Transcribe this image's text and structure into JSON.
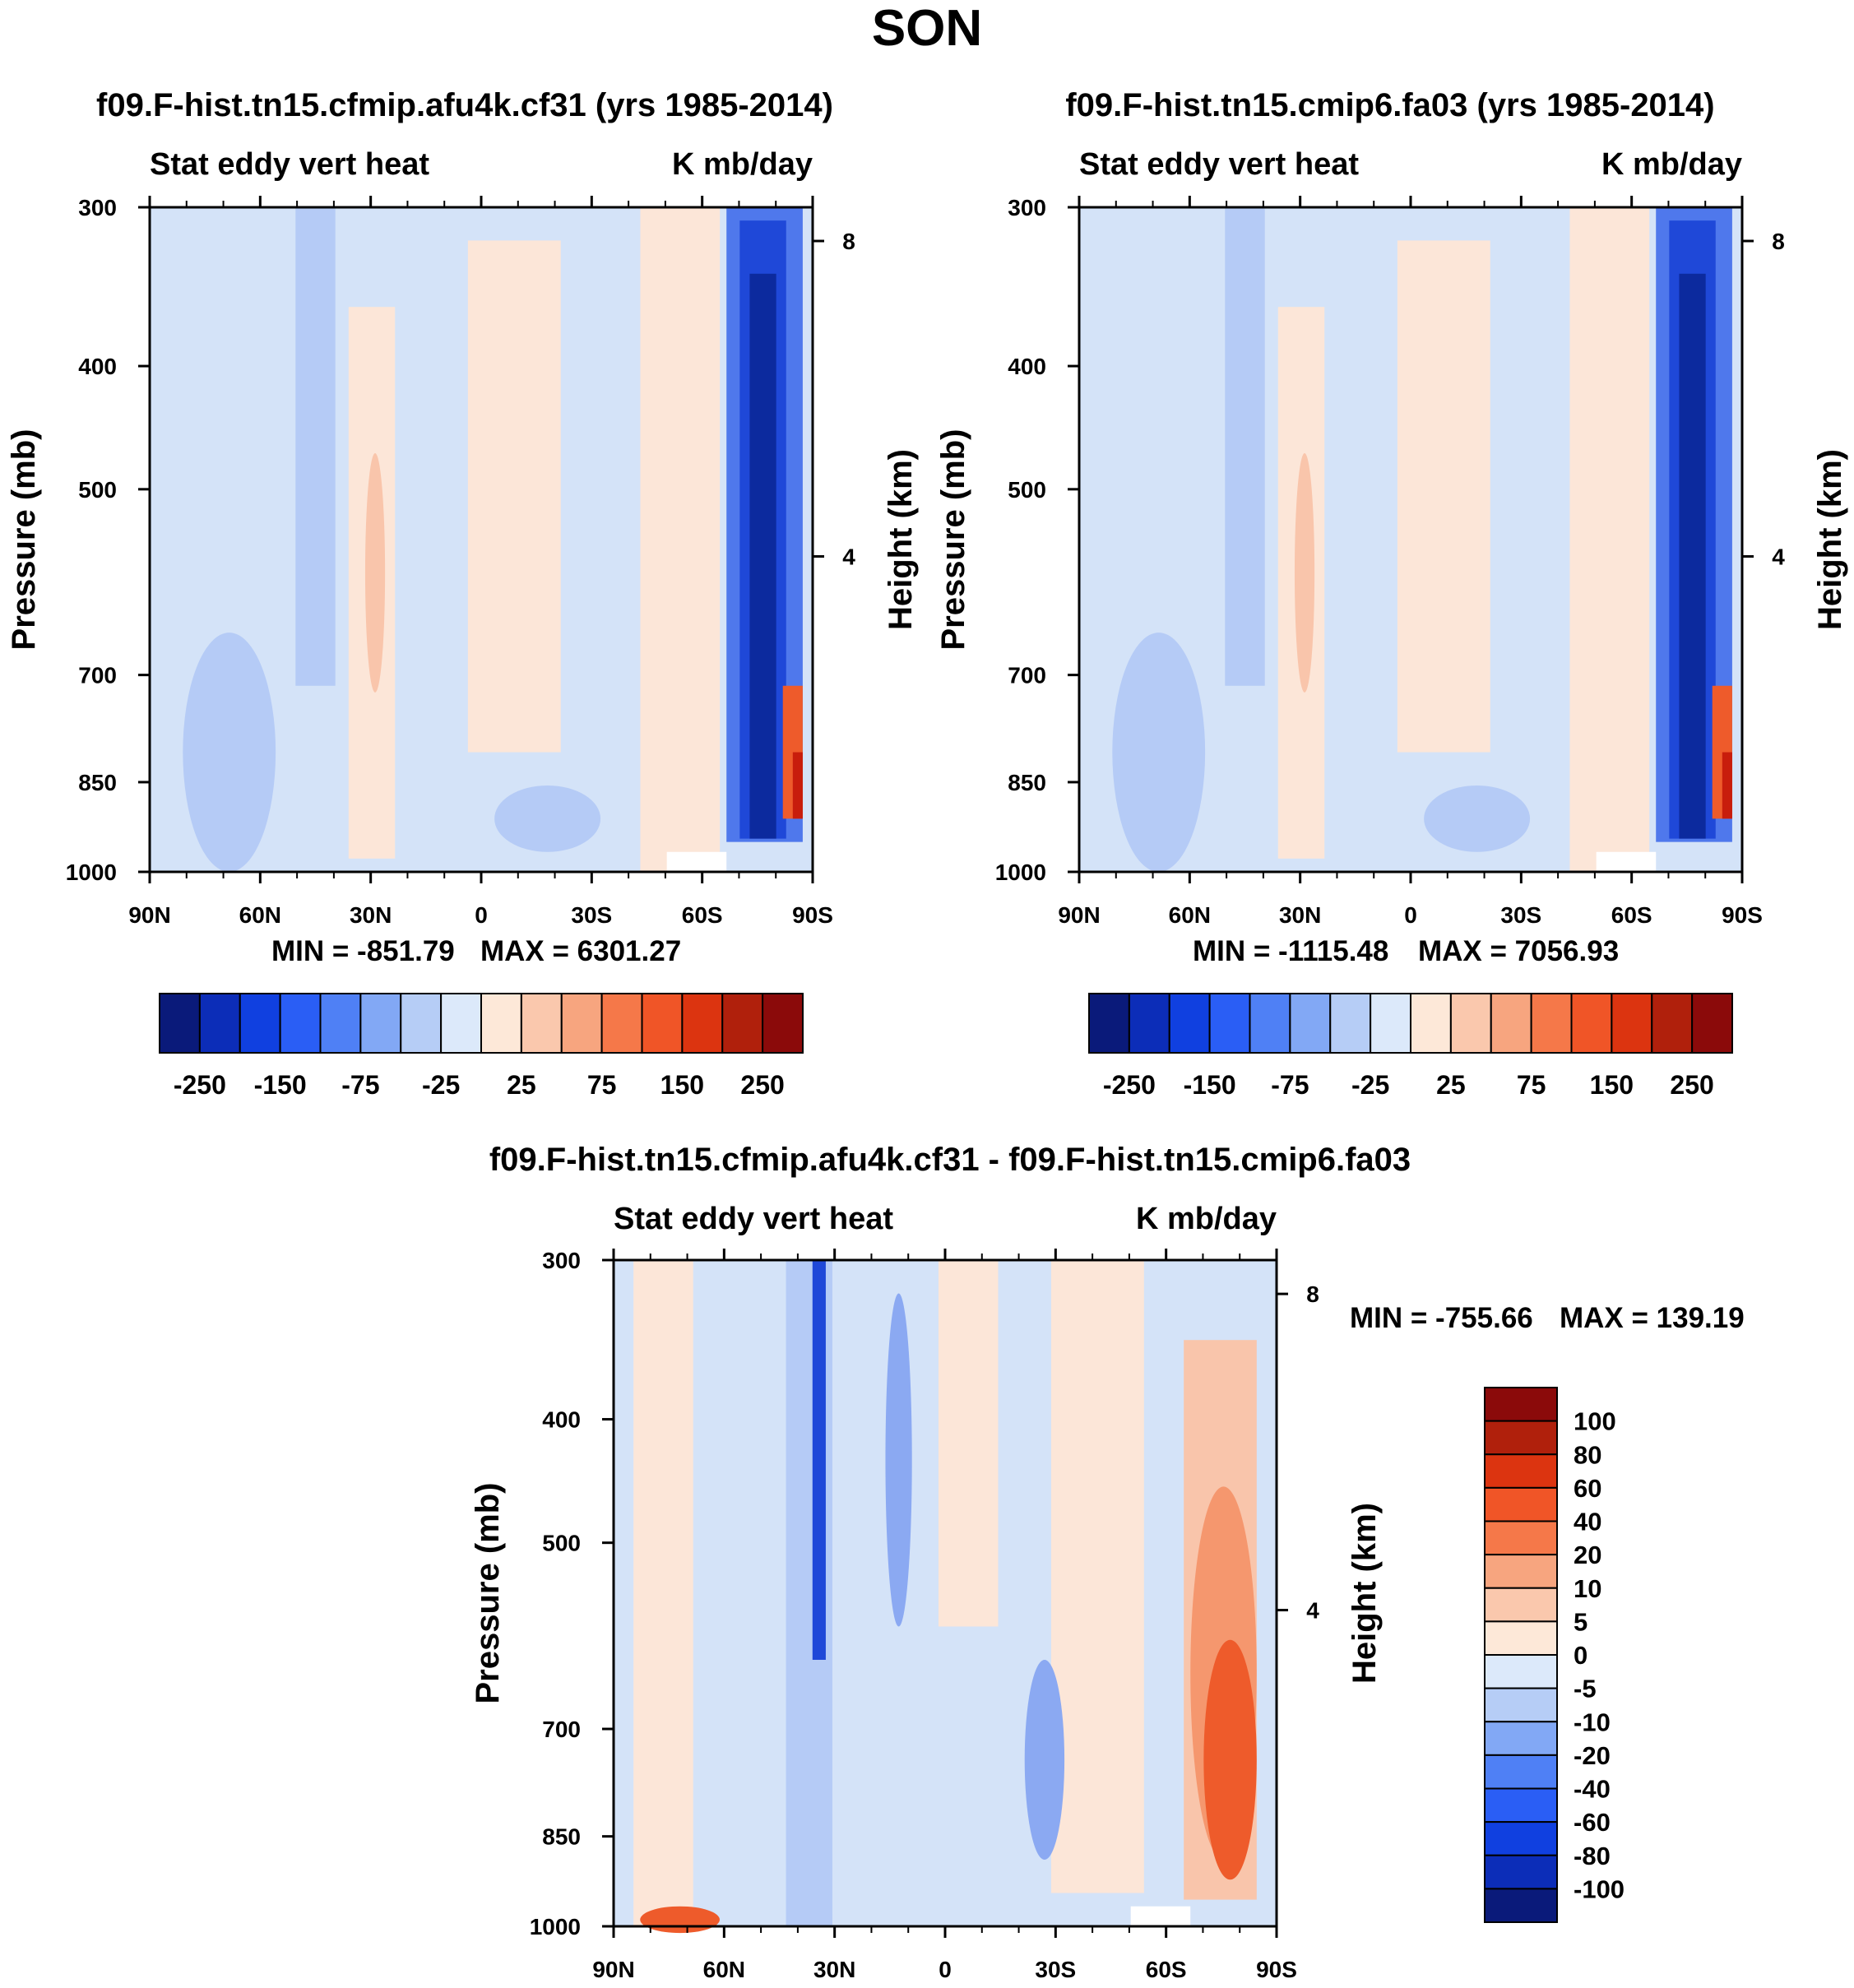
{
  "page_title": "SON",
  "chart_data": [
    {
      "type": "heatmap",
      "id": "top-left",
      "title": "f09.F-hist.tn15.cfmip.afu4k.cf31 (yrs 1985-2014)",
      "left_string": "Stat eddy vert heat",
      "right_string": "K mb/day",
      "ylabel": "Pressure (mb)",
      "ylabel_right": "Height (km)",
      "xlabel": "",
      "x_ticks": [
        "90N",
        "60N",
        "30N",
        "0",
        "30S",
        "60S",
        "90S"
      ],
      "y_ticks": [
        "300",
        "400",
        "500",
        "700",
        "850",
        "1000"
      ],
      "y_right_ticks": [
        "8",
        "4"
      ],
      "ylim": [
        1000,
        300
      ],
      "xlim": [
        90,
        -90
      ],
      "min_label": "MIN = -851.79",
      "max_label": "MAX = 6301.27",
      "min": -851.79,
      "max": 6301.27,
      "colorbar_labels": [
        "-250",
        "-150",
        "-75",
        "-25",
        "25",
        "75",
        "150",
        "250"
      ]
    },
    {
      "type": "heatmap",
      "id": "top-right",
      "title": "f09.F-hist.tn15.cmip6.fa03 (yrs 1985-2014)",
      "left_string": "Stat eddy vert heat",
      "right_string": "K mb/day",
      "ylabel": "Pressure (mb)",
      "ylabel_right": "Height (km)",
      "xlabel": "",
      "x_ticks": [
        "90N",
        "60N",
        "30N",
        "0",
        "30S",
        "60S",
        "90S"
      ],
      "y_ticks": [
        "300",
        "400",
        "500",
        "700",
        "850",
        "1000"
      ],
      "y_right_ticks": [
        "8",
        "4"
      ],
      "ylim": [
        1000,
        300
      ],
      "xlim": [
        90,
        -90
      ],
      "min_label": "MIN = -1115.48",
      "max_label": "MAX = 7056.93",
      "min": -1115.48,
      "max": 7056.93,
      "colorbar_labels": [
        "-250",
        "-150",
        "-75",
        "-25",
        "25",
        "75",
        "150",
        "250"
      ]
    },
    {
      "type": "heatmap",
      "id": "bottom-diff",
      "title": "f09.F-hist.tn15.cfmip.afu4k.cf31 - f09.F-hist.tn15.cmip6.fa03",
      "left_string": "Stat eddy vert heat",
      "right_string": "K mb/day",
      "ylabel": "Pressure (mb)",
      "ylabel_right": "Height (km)",
      "xlabel": "",
      "x_ticks": [
        "90N",
        "60N",
        "30N",
        "0",
        "30S",
        "60S",
        "90S"
      ],
      "y_ticks": [
        "300",
        "400",
        "500",
        "700",
        "850",
        "1000"
      ],
      "y_right_ticks": [
        "8",
        "4"
      ],
      "ylim": [
        1000,
        300
      ],
      "xlim": [
        90,
        -90
      ],
      "min_label": "MIN = -755.66",
      "max_label": "MAX = 139.19",
      "min": -755.66,
      "max": 139.19,
      "colorbar_labels": [
        "100",
        "80",
        "60",
        "40",
        "20",
        "10",
        "5",
        "0",
        "-5",
        "-10",
        "-20",
        "-40",
        "-60",
        "-80",
        "-100"
      ]
    }
  ],
  "colors": {
    "colorbar_16": [
      "#0a1a7a",
      "#0c2db8",
      "#1040e0",
      "#2a5ef5",
      "#4f80f5",
      "#82a8f5",
      "#b6cdf6",
      "#dce9fa",
      "#fde8d8",
      "#fac8ad",
      "#f7a57f",
      "#f57849",
      "#f05527",
      "#dc3410",
      "#b0200c",
      "#8b0a0a"
    ],
    "field_neg1": "#d4e3f8",
    "field_neg2": "#b5cbf6",
    "field_neg3": "#8ba9f2",
    "field_neg4": "#4f78ec",
    "field_neg5": "#1f48d8",
    "field_neg6": "#0c2a9e",
    "field_pos1": "#fce6d8",
    "field_pos2": "#f9c5ab",
    "field_pos3": "#f5976e",
    "field_pos4": "#ee5b2b",
    "field_pos5": "#c81d0c"
  }
}
